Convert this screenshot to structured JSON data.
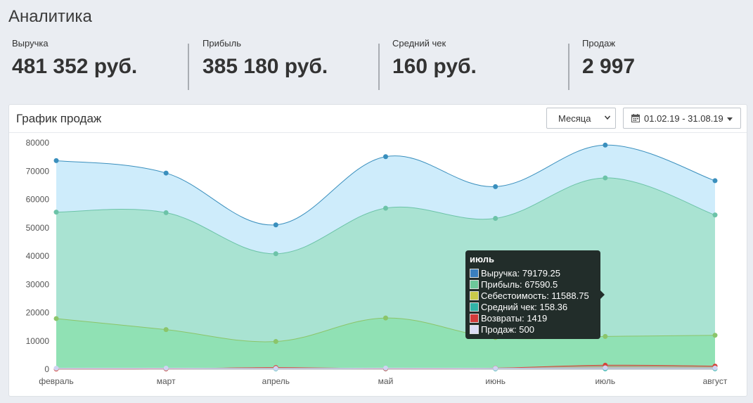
{
  "page_title": "Аналитика",
  "stats": [
    {
      "label": "Выручка",
      "value": "481 352 руб."
    },
    {
      "label": "Прибыль",
      "value": "385 180 руб."
    },
    {
      "label": "Средний чек",
      "value": "160 руб."
    },
    {
      "label": "Продаж",
      "value": "2 997"
    }
  ],
  "panel": {
    "title": "График продаж",
    "period_select": {
      "selected": "Месяца",
      "icon": "chevron-down-icon"
    },
    "date_range": {
      "value": "01.02.19 - 31.08.19",
      "icon": "calendar-icon"
    }
  },
  "colors": {
    "revenue": "#3a8fbd",
    "profit": "#6cc3a8",
    "cost": "#8bc56a",
    "avg_check": "#3bb8b0",
    "returns": "#d6443a",
    "sales": "#cfd3f2"
  },
  "tooltip": {
    "title": "июль",
    "rows": [
      {
        "label": "Выручка: 79179.25",
        "color": "#3a7fbf"
      },
      {
        "label": "Прибыль: 67590.5",
        "color": "#6dc79a"
      },
      {
        "label": "Себестоимость: 11588.75",
        "color": "#c9c94a"
      },
      {
        "label": "Средний чек: 158.36",
        "color": "#31b3a7"
      },
      {
        "label": "Возвраты: 1419",
        "color": "#d23b3b"
      },
      {
        "label": "Продаж: 500",
        "color": "#dcdcf5"
      }
    ]
  },
  "chart_data": {
    "type": "area",
    "x": [
      "февраль",
      "март",
      "апрель",
      "май",
      "июнь",
      "июль",
      "август"
    ],
    "y_ticks": [
      "0",
      "10000",
      "20000",
      "30000",
      "40000",
      "50000",
      "60000",
      "70000",
      "80000"
    ],
    "ylim": [
      0,
      80000
    ],
    "grid": false,
    "series": [
      {
        "name": "Выручка",
        "key": "revenue",
        "values": [
          73700,
          69300,
          51000,
          75100,
          64500,
          79179.25,
          66600
        ]
      },
      {
        "name": "Прибыль",
        "key": "profit",
        "values": [
          55500,
          55300,
          40800,
          56900,
          53300,
          67590.5,
          54500
        ]
      },
      {
        "name": "Себестоимость",
        "key": "cost",
        "values": [
          17900,
          14000,
          9800,
          18100,
          11200,
          11588.75,
          12000
        ]
      },
      {
        "name": "Средний чек",
        "key": "avg_check",
        "values": [
          150,
          155,
          160,
          162,
          160,
          158.36,
          165
        ]
      },
      {
        "name": "Возвраты",
        "key": "returns",
        "values": [
          100,
          150,
          600,
          200,
          400,
          1419,
          1100
        ]
      },
      {
        "name": "Продаж",
        "key": "sales",
        "values": [
          350,
          380,
          300,
          400,
          350,
          500,
          420
        ]
      }
    ]
  }
}
